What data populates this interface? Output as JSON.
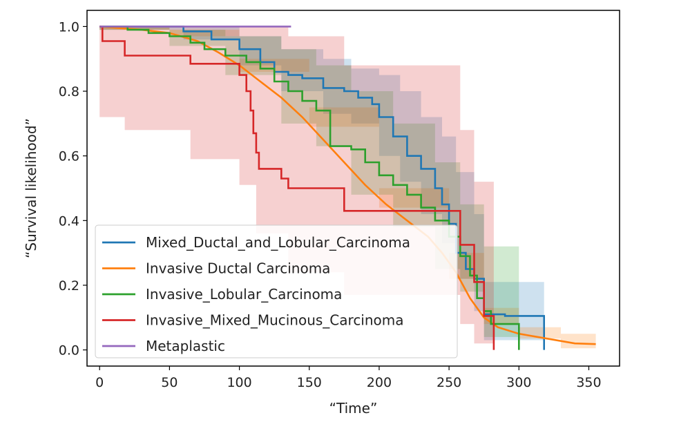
{
  "chart_data": {
    "type": "line",
    "title": "",
    "xlabel": "“Time”",
    "ylabel": "“Survival likelihood”",
    "xlim": [
      -9,
      372
    ],
    "ylim": [
      -0.05,
      1.05
    ],
    "xticks": [
      0,
      50,
      100,
      150,
      200,
      250,
      300,
      350
    ],
    "yticks": [
      0.0,
      0.2,
      0.4,
      0.6,
      0.8,
      1.0
    ],
    "ytick_labels": [
      "0.0",
      "0.2",
      "0.4",
      "0.6",
      "0.8",
      "1.0"
    ],
    "grid": false,
    "legend_position": "lower-left",
    "series": [
      {
        "name": "Mixed_Ductal_and_Lobular_Carcinoma",
        "color": "#1f77b4",
        "step": true,
        "points": [
          [
            0,
            1.0
          ],
          [
            60,
            0.985
          ],
          [
            80,
            0.96
          ],
          [
            100,
            0.93
          ],
          [
            115,
            0.89
          ],
          [
            125,
            0.86
          ],
          [
            135,
            0.85
          ],
          [
            145,
            0.84
          ],
          [
            160,
            0.81
          ],
          [
            175,
            0.8
          ],
          [
            185,
            0.78
          ],
          [
            195,
            0.76
          ],
          [
            200,
            0.72
          ],
          [
            210,
            0.66
          ],
          [
            220,
            0.6
          ],
          [
            230,
            0.56
          ],
          [
            240,
            0.5
          ],
          [
            245,
            0.45
          ],
          [
            250,
            0.39
          ],
          [
            255,
            0.3
          ],
          [
            262,
            0.25
          ],
          [
            268,
            0.22
          ],
          [
            275,
            0.11
          ],
          [
            290,
            0.105
          ],
          [
            318,
            0.105
          ],
          [
            318,
            0.0
          ]
        ],
        "ci_upper": [
          [
            0,
            1.0
          ],
          [
            60,
            1.0
          ],
          [
            100,
            0.97
          ],
          [
            130,
            0.93
          ],
          [
            160,
            0.9
          ],
          [
            180,
            0.87
          ],
          [
            200,
            0.85
          ],
          [
            215,
            0.8
          ],
          [
            230,
            0.72
          ],
          [
            245,
            0.66
          ],
          [
            255,
            0.55
          ],
          [
            268,
            0.42
          ],
          [
            275,
            0.21
          ],
          [
            318,
            0.21
          ]
        ],
        "ci_lower": [
          [
            0,
            0.99
          ],
          [
            60,
            0.96
          ],
          [
            100,
            0.88
          ],
          [
            130,
            0.8
          ],
          [
            160,
            0.73
          ],
          [
            180,
            0.7
          ],
          [
            200,
            0.6
          ],
          [
            215,
            0.52
          ],
          [
            230,
            0.42
          ],
          [
            245,
            0.33
          ],
          [
            255,
            0.22
          ],
          [
            268,
            0.12
          ],
          [
            275,
            0.03
          ],
          [
            318,
            0.0
          ]
        ]
      },
      {
        "name": "Invasive Ductal Carcinoma",
        "color": "#ff7f0e",
        "step": false,
        "points": [
          [
            0,
            1.0
          ],
          [
            30,
            0.99
          ],
          [
            50,
            0.98
          ],
          [
            70,
            0.955
          ],
          [
            85,
            0.92
          ],
          [
            100,
            0.88
          ],
          [
            115,
            0.83
          ],
          [
            130,
            0.78
          ],
          [
            145,
            0.72
          ],
          [
            160,
            0.65
          ],
          [
            175,
            0.58
          ],
          [
            190,
            0.51
          ],
          [
            205,
            0.45
          ],
          [
            220,
            0.4
          ],
          [
            235,
            0.35
          ],
          [
            245,
            0.3
          ],
          [
            255,
            0.24
          ],
          [
            265,
            0.16
          ],
          [
            275,
            0.1
          ],
          [
            285,
            0.07
          ],
          [
            300,
            0.05
          ],
          [
            320,
            0.035
          ],
          [
            340,
            0.02
          ],
          [
            355,
            0.018
          ]
        ],
        "ci_upper": [
          [
            0,
            1.0
          ],
          [
            50,
            0.99
          ],
          [
            100,
            0.9
          ],
          [
            150,
            0.75
          ],
          [
            200,
            0.5
          ],
          [
            250,
            0.3
          ],
          [
            275,
            0.13
          ],
          [
            300,
            0.07
          ],
          [
            330,
            0.05
          ],
          [
            355,
            0.04
          ]
        ],
        "ci_lower": [
          [
            0,
            0.99
          ],
          [
            50,
            0.97
          ],
          [
            100,
            0.86
          ],
          [
            150,
            0.69
          ],
          [
            200,
            0.44
          ],
          [
            250,
            0.22
          ],
          [
            275,
            0.08
          ],
          [
            300,
            0.035
          ],
          [
            330,
            0.005
          ],
          [
            355,
            0.0
          ]
        ]
      },
      {
        "name": "Invasive_Lobular_Carcinoma",
        "color": "#2ca02c",
        "step": true,
        "points": [
          [
            0,
            1.0
          ],
          [
            20,
            0.99
          ],
          [
            35,
            0.98
          ],
          [
            50,
            0.97
          ],
          [
            65,
            0.95
          ],
          [
            75,
            0.93
          ],
          [
            90,
            0.91
          ],
          [
            105,
            0.89
          ],
          [
            115,
            0.87
          ],
          [
            125,
            0.83
          ],
          [
            135,
            0.8
          ],
          [
            145,
            0.77
          ],
          [
            155,
            0.74
          ],
          [
            165,
            0.63
          ],
          [
            180,
            0.62
          ],
          [
            190,
            0.58
          ],
          [
            200,
            0.54
          ],
          [
            210,
            0.51
          ],
          [
            220,
            0.48
          ],
          [
            230,
            0.44
          ],
          [
            240,
            0.4
          ],
          [
            250,
            0.35
          ],
          [
            258,
            0.29
          ],
          [
            265,
            0.23
          ],
          [
            270,
            0.16
          ],
          [
            275,
            0.12
          ],
          [
            280,
            0.08
          ],
          [
            300,
            0.05
          ],
          [
            300,
            0.0
          ]
        ],
        "ci_upper": [
          [
            0,
            1.0
          ],
          [
            50,
            0.99
          ],
          [
            90,
            0.97
          ],
          [
            130,
            0.93
          ],
          [
            155,
            0.88
          ],
          [
            180,
            0.8
          ],
          [
            210,
            0.7
          ],
          [
            240,
            0.58
          ],
          [
            258,
            0.45
          ],
          [
            275,
            0.32
          ],
          [
            300,
            0.15
          ]
        ],
        "ci_lower": [
          [
            0,
            0.99
          ],
          [
            50,
            0.94
          ],
          [
            90,
            0.85
          ],
          [
            130,
            0.7
          ],
          [
            155,
            0.63
          ],
          [
            180,
            0.48
          ],
          [
            210,
            0.38
          ],
          [
            240,
            0.25
          ],
          [
            258,
            0.18
          ],
          [
            275,
            0.04
          ],
          [
            300,
            0.0
          ]
        ]
      },
      {
        "name": "Invasive_Mixed_Mucinous_Carcinoma",
        "color": "#d62728",
        "step": true,
        "points": [
          [
            0,
            1.0
          ],
          [
            2,
            0.955
          ],
          [
            18,
            0.91
          ],
          [
            65,
            0.885
          ],
          [
            100,
            0.85
          ],
          [
            105,
            0.8
          ],
          [
            108,
            0.74
          ],
          [
            110,
            0.67
          ],
          [
            112,
            0.61
          ],
          [
            114,
            0.56
          ],
          [
            130,
            0.53
          ],
          [
            135,
            0.5
          ],
          [
            175,
            0.43
          ],
          [
            258,
            0.325
          ],
          [
            268,
            0.21
          ],
          [
            275,
            0.105
          ],
          [
            282,
            0.0
          ]
        ],
        "ci_upper": [
          [
            0,
            1.0
          ],
          [
            65,
            1.0
          ],
          [
            100,
            1.0
          ],
          [
            135,
            0.97
          ],
          [
            175,
            0.88
          ],
          [
            258,
            0.68
          ],
          [
            268,
            0.52
          ],
          [
            282,
            0.38
          ]
        ],
        "ci_lower": [
          [
            0,
            0.72
          ],
          [
            18,
            0.68
          ],
          [
            65,
            0.59
          ],
          [
            100,
            0.51
          ],
          [
            112,
            0.36
          ],
          [
            135,
            0.24
          ],
          [
            175,
            0.17
          ],
          [
            258,
            0.08
          ],
          [
            268,
            0.02
          ],
          [
            282,
            0.0
          ]
        ]
      },
      {
        "name": "Metaplastic",
        "color": "#9467bd",
        "step": true,
        "points": [
          [
            0,
            1.0
          ],
          [
            137,
            1.0
          ]
        ]
      }
    ]
  }
}
